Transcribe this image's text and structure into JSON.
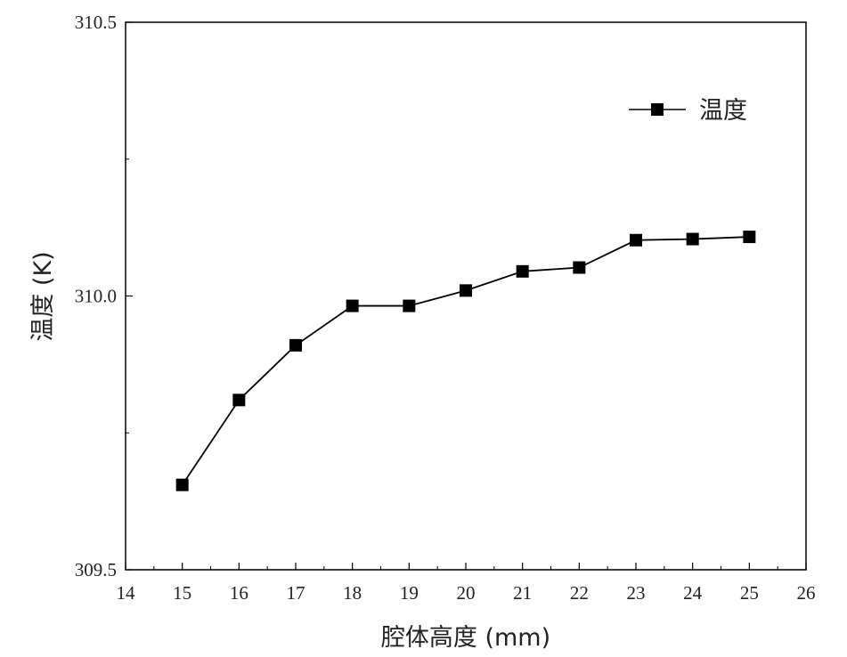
{
  "chart_data": {
    "type": "line",
    "xlabel": "腔体高度 (mm)",
    "ylabel": "温度 (K)",
    "xlim": [
      14,
      26
    ],
    "ylim": [
      309.5,
      310.5
    ],
    "x_ticks": [
      14,
      15,
      16,
      17,
      18,
      19,
      20,
      21,
      22,
      23,
      24,
      25,
      26
    ],
    "x_tick_labels": [
      "14",
      "15",
      "16",
      "17",
      "18",
      "19",
      "20",
      "21",
      "22",
      "23",
      "24",
      "25",
      "26"
    ],
    "y_ticks": [
      309.5,
      310.0,
      310.5
    ],
    "y_tick_labels": [
      "309.5",
      "310.0",
      "310.5"
    ],
    "legend_position": "top-right",
    "grid": false,
    "series": [
      {
        "name": "温度",
        "marker": "square",
        "color": "#000000",
        "x": [
          15,
          16,
          17,
          18,
          19,
          20,
          21,
          22,
          23,
          24,
          25
        ],
        "values": [
          309.655,
          309.81,
          309.91,
          309.982,
          309.982,
          310.01,
          310.045,
          310.052,
          310.102,
          310.104,
          310.108
        ]
      }
    ]
  }
}
